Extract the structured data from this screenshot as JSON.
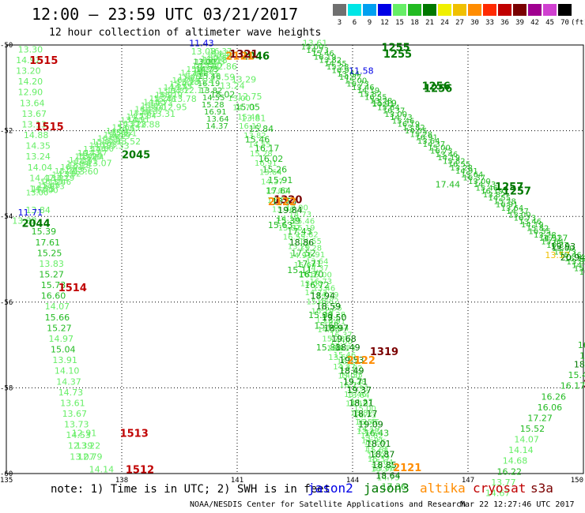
{
  "header": {
    "title": "12:00 – 23:59 UTC 03/21/2017",
    "subtitle": "12 hour collection of altimeter wave heights"
  },
  "legend": {
    "unit": "(ft)",
    "bins": [
      {
        "label": "3",
        "color": "#707070"
      },
      {
        "label": "6",
        "color": "#00e6e6"
      },
      {
        "label": "9",
        "color": "#00a0f0"
      },
      {
        "label": "12",
        "color": "#0000e6"
      },
      {
        "label": "15",
        "color": "#66ee66"
      },
      {
        "label": "18",
        "color": "#22bb22"
      },
      {
        "label": "21",
        "color": "#007800"
      },
      {
        "label": "24",
        "color": "#f0f000"
      },
      {
        "label": "27",
        "color": "#f0c000"
      },
      {
        "label": "30",
        "color": "#ff8c00"
      },
      {
        "label": "33",
        "color": "#ff2a00"
      },
      {
        "label": "36",
        "color": "#c00000"
      },
      {
        "label": "39",
        "color": "#7a0000"
      },
      {
        "label": "42",
        "color": "#a00090"
      },
      {
        "label": "45",
        "color": "#d040d0"
      },
      {
        "label": "70",
        "color": "#000000"
      }
    ]
  },
  "axes": {
    "x_ticks": [
      "135",
      "138",
      "141",
      "144",
      "147",
      "150"
    ],
    "y_ticks": [
      "-50",
      "-52",
      "-54",
      "-56",
      "-58",
      "-60"
    ],
    "x_range": [
      135,
      150
    ],
    "y_range": [
      -60,
      -50
    ]
  },
  "note": "note: 1) Time is in UTC; 2) SWH is in feet",
  "satellites": [
    {
      "name": "jason2",
      "color": "#0000e6"
    },
    {
      "name": "jason3",
      "color": "#007800"
    },
    {
      "name": "altika",
      "color": "#ff8c00"
    },
    {
      "name": "cryosat",
      "color": "#c00000"
    },
    {
      "name": "s3a",
      "color": "#7a0000"
    }
  ],
  "footer": {
    "credit": "NOAA/NESDIS Center for Satellite Applications and Research",
    "timestamp": "Mar 22 12:27:46 UTC 2017"
  },
  "chart_data": {
    "type": "scatter",
    "track_colors": {
      "low": "#66ee66",
      "mid": "#22bb22",
      "high": "#007800"
    },
    "time_labels": [
      {
        "text": "1515",
        "x": 135.6,
        "y": -50.35,
        "color": "#c00000"
      },
      {
        "text": "1515",
        "x": 135.75,
        "y": -51.9,
        "color": "#c00000"
      },
      {
        "text": "1514",
        "x": 136.35,
        "y": -55.65,
        "color": "#c00000"
      },
      {
        "text": "1513",
        "x": 137.95,
        "y": -59.05,
        "color": "#c00000"
      },
      {
        "text": "1512",
        "x": 138.1,
        "y": -59.9,
        "color": "#c00000"
      },
      {
        "text": "2045",
        "x": 138.0,
        "y": -52.55,
        "color": "#007800"
      },
      {
        "text": "2044",
        "x": 135.4,
        "y": -54.15,
        "color": "#007800"
      },
      {
        "text": "2046",
        "x": 141.1,
        "y": -50.25,
        "color": "#007800"
      },
      {
        "text": "2121",
        "x": 140.7,
        "y": -50.25,
        "color": "#ff8c00"
      },
      {
        "text": "1321",
        "x": 140.8,
        "y": -50.2,
        "color": "#7a0000"
      },
      {
        "text": "1255",
        "x": 144.75,
        "y": -50.05,
        "color": "#007800"
      },
      {
        "text": "1255",
        "x": 144.8,
        "y": -50.2,
        "color": "#007800"
      },
      {
        "text": "1256",
        "x": 145.8,
        "y": -50.95,
        "color": "#007800"
      },
      {
        "text": "1256",
        "x": 145.85,
        "y": -51.0,
        "color": "#007800"
      },
      {
        "text": "1257",
        "x": 147.7,
        "y": -53.3,
        "color": "#007800"
      },
      {
        "text": "1257",
        "x": 147.9,
        "y": -53.4,
        "color": "#007800"
      },
      {
        "text": "1320",
        "x": 141.95,
        "y": -53.6,
        "color": "#7a0000"
      },
      {
        "text": "2122",
        "x": 141.8,
        "y": -53.65,
        "color": "#ff8c00"
      },
      {
        "text": "1319",
        "x": 144.45,
        "y": -57.15,
        "color": "#7a0000"
      },
      {
        "text": "2122",
        "x": 143.85,
        "y": -57.35,
        "color": "#ff8c00"
      },
      {
        "text": "2121",
        "x": 145.05,
        "y": -59.85,
        "color": "#ff8c00"
      },
      {
        "text": "2",
        "x": 150.0,
        "y": -57.9,
        "color": "#7a0000"
      }
    ],
    "points": [
      {
        "v": "13.30",
        "x": 135.3,
        "y": -50.1
      },
      {
        "v": "14.92",
        "x": 135.25,
        "y": -50.35
      },
      {
        "v": "13.20",
        "x": 135.25,
        "y": -50.6
      },
      {
        "v": "14.20",
        "x": 135.3,
        "y": -50.85
      },
      {
        "v": "12.90",
        "x": 135.3,
        "y": -51.1
      },
      {
        "v": "13.64",
        "x": 135.35,
        "y": -51.35
      },
      {
        "v": "13.67",
        "x": 135.4,
        "y": -51.6
      },
      {
        "v": "13.13",
        "x": 135.4,
        "y": -51.85
      },
      {
        "v": "14.88",
        "x": 135.45,
        "y": -52.1
      },
      {
        "v": "14.35",
        "x": 135.5,
        "y": -52.35
      },
      {
        "v": "13.24",
        "x": 135.5,
        "y": -52.6
      },
      {
        "v": "14.04",
        "x": 135.55,
        "y": -52.85
      },
      {
        "v": "14.47",
        "x": 135.6,
        "y": -53.1
      },
      {
        "v": "14.51",
        "x": 135.6,
        "y": -53.35
      },
      {
        "v": "13.84",
        "x": 135.5,
        "y": -53.85
      },
      {
        "v": "13.32",
        "x": 135.15,
        "y": -54.1
      },
      {
        "v": "15.39",
        "x": 135.65,
        "y": -54.35
      },
      {
        "v": "17.61",
        "x": 135.75,
        "y": -54.6
      },
      {
        "v": "15.25",
        "x": 135.8,
        "y": -54.85
      },
      {
        "v": "13.83",
        "x": 135.85,
        "y": -55.1
      },
      {
        "v": "15.27",
        "x": 135.85,
        "y": -55.35
      },
      {
        "v": "15.73",
        "x": 135.9,
        "y": -55.6
      },
      {
        "v": "16.60",
        "x": 135.9,
        "y": -55.85
      },
      {
        "v": "14.07",
        "x": 136.0,
        "y": -56.1
      },
      {
        "v": "15.66",
        "x": 136.0,
        "y": -56.35
      },
      {
        "v": "15.27",
        "x": 136.05,
        "y": -56.6
      },
      {
        "v": "14.97",
        "x": 136.1,
        "y": -56.85
      },
      {
        "v": "15.04",
        "x": 136.15,
        "y": -57.1
      },
      {
        "v": "13.91",
        "x": 136.2,
        "y": -57.35
      },
      {
        "v": "14.10",
        "x": 136.25,
        "y": -57.6
      },
      {
        "v": "14.37",
        "x": 136.3,
        "y": -57.85
      },
      {
        "v": "14.73",
        "x": 136.35,
        "y": -58.1
      },
      {
        "v": "13.61",
        "x": 136.4,
        "y": -58.35
      },
      {
        "v": "13.67",
        "x": 136.45,
        "y": -58.6
      },
      {
        "v": "13.73",
        "x": 136.5,
        "y": -58.85
      },
      {
        "v": "14.53",
        "x": 136.55,
        "y": -59.1
      },
      {
        "v": "12.39",
        "x": 136.6,
        "y": -59.35
      },
      {
        "v": "13.07",
        "x": 136.65,
        "y": -59.6
      },
      {
        "v": "12.91",
        "x": 136.7,
        "y": -59.05
      },
      {
        "v": "13.22",
        "x": 136.8,
        "y": -59.35
      },
      {
        "v": "12.79",
        "x": 136.85,
        "y": -59.6
      },
      {
        "v": "14.14",
        "x": 137.15,
        "y": -59.9
      },
      {
        "v": "11.71",
        "x": 135.3,
        "y": -53.9,
        "c": "#0000e6"
      },
      {
        "v": "13.29",
        "x": 136.85,
        "y": -52.6
      },
      {
        "v": "13.60",
        "x": 136.75,
        "y": -52.95
      },
      {
        "v": "13.07",
        "x": 137.1,
        "y": -52.75
      },
      {
        "v": "13.33",
        "x": 137.55,
        "y": -52.35
      },
      {
        "v": "12.51",
        "x": 137.75,
        "y": -52.05
      },
      {
        "v": "13.52",
        "x": 137.85,
        "y": -52.25
      },
      {
        "v": "12.88",
        "x": 138.35,
        "y": -51.85
      },
      {
        "v": "13.31",
        "x": 138.75,
        "y": -51.6
      },
      {
        "v": "12.95",
        "x": 139.05,
        "y": -51.45
      },
      {
        "v": "13.78",
        "x": 139.3,
        "y": -51.25
      },
      {
        "v": "12.17",
        "x": 139.6,
        "y": -51.05
      },
      {
        "v": "13.24",
        "x": 139.75,
        "y": -50.85
      },
      {
        "v": "13.22",
        "x": 139.9,
        "y": -50.6
      },
      {
        "v": "13.18",
        "x": 140.1,
        "y": -50.35
      },
      {
        "v": "13.08",
        "x": 139.8,
        "y": -50.15
      },
      {
        "v": "11.43",
        "x": 139.75,
        "y": -49.95,
        "c": "#0000e6"
      },
      {
        "v": "12.86",
        "x": 140.35,
        "y": -50.5
      },
      {
        "v": "13.59",
        "x": 140.3,
        "y": -50.75
      },
      {
        "v": "13.24",
        "x": 140.55,
        "y": -50.95
      },
      {
        "v": "15.02",
        "x": 140.3,
        "y": -51.15
      },
      {
        "v": "12.75",
        "x": 141.0,
        "y": -51.2
      },
      {
        "v": "13.29",
        "x": 140.85,
        "y": -50.8
      },
      {
        "v": "15.05",
        "x": 140.95,
        "y": -51.45
      },
      {
        "v": "13.81",
        "x": 141.1,
        "y": -51.7
      },
      {
        "v": "15.84",
        "x": 141.3,
        "y": -51.95
      },
      {
        "v": "15.46",
        "x": 141.2,
        "y": -52.2
      },
      {
        "v": "16.17",
        "x": 141.45,
        "y": -52.4
      },
      {
        "v": "16.02",
        "x": 141.55,
        "y": -52.65
      },
      {
        "v": "15.26",
        "x": 141.65,
        "y": -52.9
      },
      {
        "v": "15.91",
        "x": 141.8,
        "y": -53.15
      },
      {
        "v": "17.64",
        "x": 141.75,
        "y": -53.4
      },
      {
        "v": "18.63",
        "x": 141.9,
        "y": -53.65
      },
      {
        "v": "19.84",
        "x": 142.05,
        "y": -53.85
      },
      {
        "v": "15.39",
        "x": 142.0,
        "y": -54.1
      },
      {
        "v": "15.63",
        "x": 141.8,
        "y": -54.2
      },
      {
        "v": "17.43",
        "x": 142.3,
        "y": -54.35
      },
      {
        "v": "18.86",
        "x": 142.35,
        "y": -54.6
      },
      {
        "v": "17.52",
        "x": 142.4,
        "y": -54.85
      },
      {
        "v": "17.71",
        "x": 142.55,
        "y": -55.1
      },
      {
        "v": "15.11",
        "x": 142.3,
        "y": -55.25
      },
      {
        "v": "16.70",
        "x": 142.6,
        "y": -55.35
      },
      {
        "v": "16.72",
        "x": 142.75,
        "y": -55.6
      },
      {
        "v": "18.94",
        "x": 142.9,
        "y": -55.85
      },
      {
        "v": "18.59",
        "x": 143.05,
        "y": -56.1
      },
      {
        "v": "15.09",
        "x": 142.85,
        "y": -56.3
      },
      {
        "v": "19.50",
        "x": 143.2,
        "y": -56.35
      },
      {
        "v": "15.68",
        "x": 143.0,
        "y": -56.55
      },
      {
        "v": "18.97",
        "x": 143.25,
        "y": -56.6
      },
      {
        "v": "19.68",
        "x": 143.45,
        "y": -56.85
      },
      {
        "v": "15.88",
        "x": 143.05,
        "y": -57.05
      },
      {
        "v": "18.49",
        "x": 143.55,
        "y": -57.05
      },
      {
        "v": "19.53",
        "x": 143.65,
        "y": -57.35
      },
      {
        "v": "18.49",
        "x": 143.65,
        "y": -57.6
      },
      {
        "v": "19.71",
        "x": 143.75,
        "y": -57.85
      },
      {
        "v": "19.37",
        "x": 143.85,
        "y": -58.05
      },
      {
        "v": "18.21",
        "x": 143.9,
        "y": -58.35
      },
      {
        "v": "18.17",
        "x": 144.0,
        "y": -58.6
      },
      {
        "v": "19.09",
        "x": 144.15,
        "y": -58.85
      },
      {
        "v": "16.43",
        "x": 144.3,
        "y": -59.05
      },
      {
        "v": "18.01",
        "x": 144.35,
        "y": -59.3
      },
      {
        "v": "18.87",
        "x": 144.45,
        "y": -59.55
      },
      {
        "v": "18.85",
        "x": 144.5,
        "y": -59.8
      },
      {
        "v": "18.64",
        "x": 144.6,
        "y": -60.05
      },
      {
        "v": "17.36",
        "x": 144.75,
        "y": -60.3
      },
      {
        "v": "13.61",
        "x": 142.7,
        "y": -49.95
      },
      {
        "v": "11.58",
        "x": 143.9,
        "y": -50.6,
        "c": "#0000e6"
      },
      {
        "v": "15.19",
        "x": 144.5,
        "y": -51.35
      },
      {
        "v": "17.44",
        "x": 146.15,
        "y": -53.25
      },
      {
        "v": "17.27",
        "x": 148.95,
        "y": -54.5
      },
      {
        "v": "19.93",
        "x": 149.15,
        "y": -54.7
      },
      {
        "v": "13.57",
        "x": 149.0,
        "y": -54.9,
        "c": "#f0c000"
      },
      {
        "v": "20.94",
        "x": 149.4,
        "y": -54.95
      },
      {
        "v": "16.04",
        "x": 149.85,
        "y": -57.0
      },
      {
        "v": "16.7",
        "x": 149.9,
        "y": -57.25
      },
      {
        "v": "18.12",
        "x": 149.75,
        "y": -57.45
      },
      {
        "v": "15.40",
        "x": 149.6,
        "y": -57.7
      },
      {
        "v": "16.17",
        "x": 149.4,
        "y": -57.95
      },
      {
        "v": "16.26",
        "x": 148.9,
        "y": -58.2
      },
      {
        "v": "16.06",
        "x": 148.8,
        "y": -58.45
      },
      {
        "v": "17.27",
        "x": 148.55,
        "y": -58.7
      },
      {
        "v": "15.52",
        "x": 148.35,
        "y": -58.95
      },
      {
        "v": "14.07",
        "x": 148.2,
        "y": -59.2
      },
      {
        "v": "14.14",
        "x": 148.05,
        "y": -59.45
      },
      {
        "v": "14.68",
        "x": 147.9,
        "y": -59.7
      },
      {
        "v": "16.22",
        "x": 147.75,
        "y": -59.95
      },
      {
        "v": "13.77",
        "x": 147.6,
        "y": -60.2
      },
      {
        "v": "14.67",
        "x": 147.45,
        "y": -60.45
      }
    ],
    "dense_tracks": [
      {
        "from": [
          142.7,
          -50.05
        ],
        "to": [
          149.9,
          -55.3
        ],
        "count": 68,
        "color": "#22bb22"
      },
      {
        "from": [
          140.8,
          -51.25
        ],
        "to": [
          144.6,
          -60.1
        ],
        "count": 42,
        "color": "#66ee66"
      },
      {
        "from": [
          135.55,
          -53.45
        ],
        "to": [
          140.3,
          -50.15
        ],
        "count": 40,
        "color": "#66ee66"
      },
      {
        "from": [
          135.8,
          -53.4
        ],
        "to": [
          140.4,
          -50.2
        ],
        "count": 34,
        "color": "#66ee66"
      },
      {
        "from": [
          139.9,
          -50.4
        ],
        "to": [
          140.2,
          -51.9
        ],
        "count": 10,
        "color": "#22bb22"
      },
      {
        "from": [
          142.3,
          -53.8
        ],
        "to": [
          144.5,
          -59.9
        ],
        "count": 40,
        "color": "#66ee66"
      }
    ]
  }
}
